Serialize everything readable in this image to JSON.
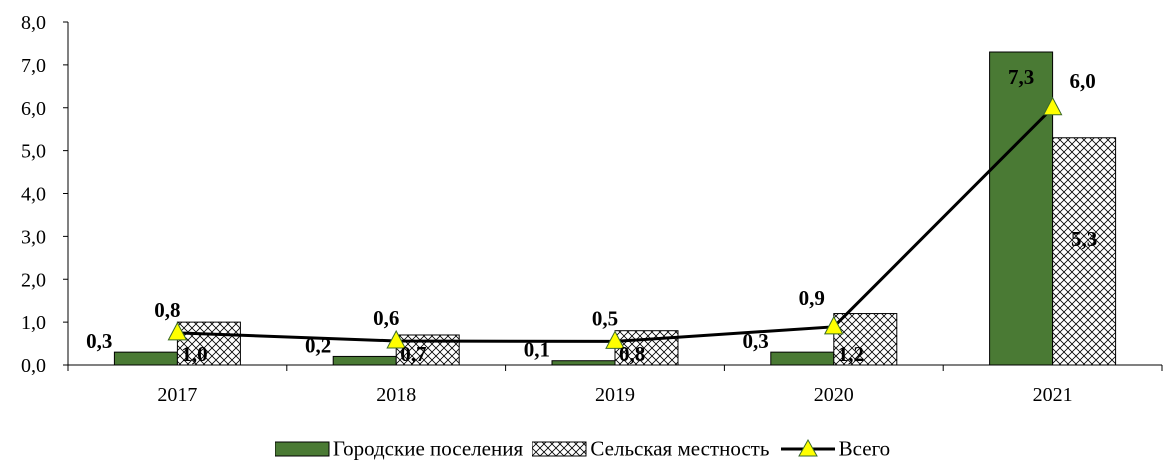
{
  "chart_data": {
    "type": "bar",
    "categories": [
      "2017",
      "2018",
      "2019",
      "2020",
      "2021"
    ],
    "ylim": [
      0,
      8
    ],
    "yticks": [
      "0,0",
      "1,0",
      "2,0",
      "3,0",
      "4,0",
      "5,0",
      "6,0",
      "7,0",
      "8,0"
    ],
    "grid": false,
    "legend_position": "bottom",
    "series": [
      {
        "name": "Городские поселения",
        "type": "bar",
        "color": "#4a7a34",
        "values": [
          0.3,
          0.2,
          0.1,
          0.3,
          7.3
        ],
        "labels": [
          "0,3",
          "0,2",
          "0,1",
          "0,3",
          "7,3"
        ]
      },
      {
        "name": "Сельская местность",
        "type": "bar",
        "pattern": "crosshatch",
        "color": "#ffffff",
        "values": [
          1.0,
          0.7,
          0.8,
          1.2,
          5.3
        ],
        "labels": [
          "1,0",
          "0,7",
          "0,8",
          "1,2",
          "5,3"
        ]
      },
      {
        "name": "Всего",
        "type": "line",
        "color": "#000000",
        "marker": "triangle",
        "marker_color": "#ffff00",
        "values": [
          0.75,
          0.56,
          0.55,
          0.89,
          6.0
        ],
        "labels": [
          "0,8",
          "0,6",
          "0,5",
          "0,9",
          "6,0"
        ]
      }
    ]
  }
}
